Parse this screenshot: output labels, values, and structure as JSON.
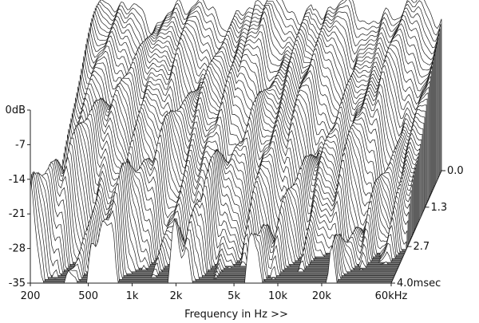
{
  "chart_data": {
    "type": "waterfall",
    "title": "",
    "xlabel": "Frequency in Hz >>",
    "ylabel": "",
    "x_scale": "log",
    "x_ticks": [
      {
        "value": 200,
        "label": "200"
      },
      {
        "value": 500,
        "label": "500"
      },
      {
        "value": 1000,
        "label": "1k"
      },
      {
        "value": 2000,
        "label": "2k"
      },
      {
        "value": 5000,
        "label": "5k"
      },
      {
        "value": 10000,
        "label": "10k"
      },
      {
        "value": 20000,
        "label": "20k"
      },
      {
        "value": 60000,
        "label": "60kHz"
      }
    ],
    "xlim": [
      200,
      60000
    ],
    "y_ticks": [
      {
        "value": 0,
        "label": "0dB"
      },
      {
        "value": -7,
        "label": "-7"
      },
      {
        "value": -14,
        "label": "-14"
      },
      {
        "value": -21,
        "label": "-21"
      },
      {
        "value": -28,
        "label": "-28"
      },
      {
        "value": -35,
        "label": "-35"
      }
    ],
    "ylim": [
      -35,
      0
    ],
    "z_ticks": [
      {
        "value": 0.0,
        "label": "0.0"
      },
      {
        "value": 1.3,
        "label": "1.3"
      },
      {
        "value": 2.7,
        "label": "2.7"
      },
      {
        "value": 4.0,
        "label": "4.0msec"
      }
    ],
    "zlim": [
      0,
      4.0
    ],
    "slice_count": 60,
    "legend": "none",
    "grid": false
  }
}
